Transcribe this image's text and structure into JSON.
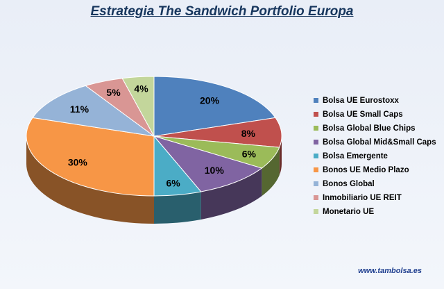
{
  "chart_data": {
    "type": "pie",
    "title": "Estrategia The Sandwich Portfolio Europa",
    "categories": [
      "Bolsa UE Eurostoxx",
      "Bolsa UE Small Caps",
      "Bolsa Global Blue Chips",
      "Bolsa Global Mid&Small Caps",
      "Bolsa Emergente",
      "Bonos UE Medio Plazo",
      "Bonos Global",
      "Inmobiliario UE REIT",
      "Monetario UE"
    ],
    "values": [
      20,
      8,
      6,
      10,
      6,
      30,
      11,
      5,
      4
    ],
    "labels": [
      "20%",
      "8%",
      "6%",
      "10%",
      "6%",
      "30%",
      "11%",
      "5%",
      "4%"
    ],
    "colors": [
      "#4f81bd",
      "#c0504d",
      "#9bbb59",
      "#8064a2",
      "#4bacc6",
      "#f79646",
      "#95b3d7",
      "#d99694",
      "#c3d69b"
    ],
    "legend_position": "right",
    "style": "3d"
  },
  "footer": {
    "source": "www.tambolsa.es"
  }
}
